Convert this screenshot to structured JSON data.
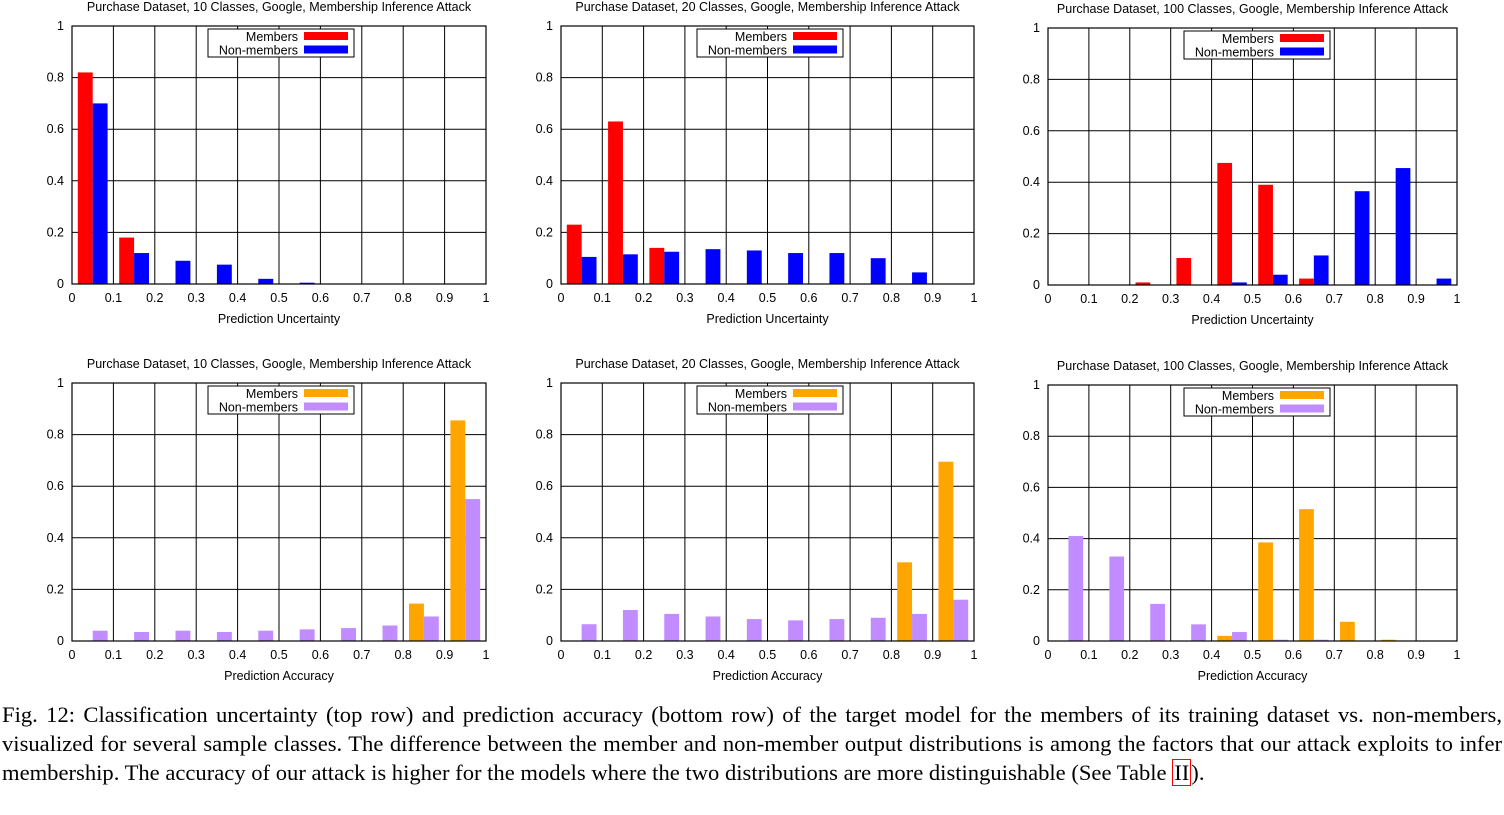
{
  "chart_data": [
    {
      "type": "bar",
      "title": "Purchase Dataset, 10 Classes, Google, Membership Inference Attack",
      "xlabel": "Prediction Uncertainty",
      "ylabel": "",
      "xlim": [
        0,
        1
      ],
      "ylim": [
        0,
        1
      ],
      "xticks": [
        "0",
        "0.1",
        "0.2",
        "0.3",
        "0.4",
        "0.5",
        "0.6",
        "0.7",
        "0.8",
        "0.9",
        "1"
      ],
      "yticks": [
        "0",
        "0.2",
        "0.4",
        "0.6",
        "0.8",
        "1"
      ],
      "grid": true,
      "legend_position": "top-center",
      "bin_starts": [
        0,
        0.1,
        0.2,
        0.3,
        0.4,
        0.5,
        0.6,
        0.7,
        0.8,
        0.9
      ],
      "series": [
        {
          "name": "Members",
          "color": "#ff0000",
          "values": [
            0.82,
            0.18,
            0,
            0,
            0,
            0,
            0,
            0,
            0,
            0
          ]
        },
        {
          "name": "Non-members",
          "color": "#0000ff",
          "values": [
            0.7,
            0.12,
            0.09,
            0.075,
            0.02,
            0.005,
            0,
            0,
            0,
            0
          ]
        }
      ]
    },
    {
      "type": "bar",
      "title": "Purchase Dataset, 20 Classes, Google, Membership Inference Attack",
      "xlabel": "Prediction Uncertainty",
      "ylabel": "",
      "xlim": [
        0,
        1
      ],
      "ylim": [
        0,
        1
      ],
      "xticks": [
        "0",
        "0.1",
        "0.2",
        "0.3",
        "0.4",
        "0.5",
        "0.6",
        "0.7",
        "0.8",
        "0.9",
        "1"
      ],
      "yticks": [
        "0",
        "0.2",
        "0.4",
        "0.6",
        "0.8",
        "1"
      ],
      "grid": true,
      "legend_position": "top-center",
      "bin_starts": [
        0,
        0.1,
        0.2,
        0.3,
        0.4,
        0.5,
        0.6,
        0.7,
        0.8,
        0.9
      ],
      "series": [
        {
          "name": "Members",
          "color": "#ff0000",
          "values": [
            0.23,
            0.63,
            0.14,
            0,
            0,
            0,
            0,
            0,
            0,
            0
          ]
        },
        {
          "name": "Non-members",
          "color": "#0000ff",
          "values": [
            0.105,
            0.115,
            0.125,
            0.135,
            0.13,
            0.12,
            0.12,
            0.1,
            0.045,
            0
          ]
        }
      ]
    },
    {
      "type": "bar",
      "title": "Purchase Dataset, 100 Classes, Google, Membership Inference Attack",
      "xlabel": "Prediction Uncertainty",
      "ylabel": "",
      "xlim": [
        0,
        1
      ],
      "ylim": [
        0,
        1
      ],
      "xticks": [
        "0",
        "0.1",
        "0.2",
        "0.3",
        "0.4",
        "0.5",
        "0.6",
        "0.7",
        "0.8",
        "0.9",
        "1"
      ],
      "yticks": [
        "0",
        "0.2",
        "0.4",
        "0.6",
        "0.8",
        "1"
      ],
      "grid": true,
      "legend_position": "top-center",
      "bin_starts": [
        0,
        0.1,
        0.2,
        0.3,
        0.4,
        0.5,
        0.6,
        0.7,
        0.8,
        0.9
      ],
      "series": [
        {
          "name": "Members",
          "color": "#ff0000",
          "values": [
            0,
            0,
            0.01,
            0.105,
            0.475,
            0.39,
            0.025,
            0,
            0,
            0
          ]
        },
        {
          "name": "Non-members",
          "color": "#0000ff",
          "values": [
            0,
            0,
            0,
            0,
            0.01,
            0.04,
            0.115,
            0.365,
            0.455,
            0.025
          ]
        }
      ]
    },
    {
      "type": "bar",
      "title": "Purchase Dataset, 10 Classes, Google, Membership Inference Attack",
      "xlabel": "Prediction Accuracy",
      "ylabel": "",
      "xlim": [
        0,
        1
      ],
      "ylim": [
        0,
        1
      ],
      "xticks": [
        "0",
        "0.1",
        "0.2",
        "0.3",
        "0.4",
        "0.5",
        "0.6",
        "0.7",
        "0.8",
        "0.9",
        "1"
      ],
      "yticks": [
        "0",
        "0.2",
        "0.4",
        "0.6",
        "0.8",
        "1"
      ],
      "grid": true,
      "legend_position": "top-center",
      "bin_starts": [
        0,
        0.1,
        0.2,
        0.3,
        0.4,
        0.5,
        0.6,
        0.7,
        0.8,
        0.9
      ],
      "series": [
        {
          "name": "Members",
          "color": "#ffa500",
          "values": [
            0,
            0,
            0,
            0,
            0,
            0,
            0,
            0,
            0.145,
            0.855
          ]
        },
        {
          "name": "Non-members",
          "color": "#c08cff",
          "values": [
            0.04,
            0.035,
            0.04,
            0.035,
            0.04,
            0.045,
            0.05,
            0.06,
            0.095,
            0.55
          ]
        }
      ]
    },
    {
      "type": "bar",
      "title": "Purchase Dataset, 20 Classes, Google, Membership Inference Attack",
      "xlabel": "Prediction Accuracy",
      "ylabel": "",
      "xlim": [
        0,
        1
      ],
      "ylim": [
        0,
        1
      ],
      "xticks": [
        "0",
        "0.1",
        "0.2",
        "0.3",
        "0.4",
        "0.5",
        "0.6",
        "0.7",
        "0.8",
        "0.9",
        "1"
      ],
      "yticks": [
        "0",
        "0.2",
        "0.4",
        "0.6",
        "0.8",
        "1"
      ],
      "grid": true,
      "legend_position": "top-center",
      "bin_starts": [
        0,
        0.1,
        0.2,
        0.3,
        0.4,
        0.5,
        0.6,
        0.7,
        0.8,
        0.9
      ],
      "series": [
        {
          "name": "Members",
          "color": "#ffa500",
          "values": [
            0,
            0,
            0,
            0,
            0,
            0,
            0,
            0,
            0.305,
            0.695
          ]
        },
        {
          "name": "Non-members",
          "color": "#c08cff",
          "values": [
            0.065,
            0.12,
            0.105,
            0.095,
            0.085,
            0.08,
            0.085,
            0.09,
            0.105,
            0.16
          ]
        }
      ]
    },
    {
      "type": "bar",
      "title": "Purchase Dataset, 100 Classes, Google, Membership Inference Attack",
      "xlabel": "Prediction Accuracy",
      "ylabel": "",
      "xlim": [
        0,
        1
      ],
      "ylim": [
        0,
        1
      ],
      "xticks": [
        "0",
        "0.1",
        "0.2",
        "0.3",
        "0.4",
        "0.5",
        "0.6",
        "0.7",
        "0.8",
        "0.9",
        "1"
      ],
      "yticks": [
        "0",
        "0.2",
        "0.4",
        "0.6",
        "0.8",
        "1"
      ],
      "grid": true,
      "legend_position": "top-center",
      "bin_starts": [
        0,
        0.1,
        0.2,
        0.3,
        0.4,
        0.5,
        0.6,
        0.7,
        0.8,
        0.9
      ],
      "series": [
        {
          "name": "Members",
          "color": "#ffa500",
          "values": [
            0,
            0,
            0,
            0,
            0.02,
            0.385,
            0.515,
            0.075,
            0.005,
            0
          ]
        },
        {
          "name": "Non-members",
          "color": "#c08cff",
          "values": [
            0.41,
            0.33,
            0.145,
            0.065,
            0.035,
            0.005,
            0.005,
            0,
            0,
            0
          ]
        }
      ]
    }
  ],
  "caption": {
    "label": "Fig. 12:",
    "text": "Classification uncertainty (top row) and prediction accuracy (bottom row) of the target model for the members of its training dataset vs. non-members, visualized for several sample classes. The difference between the member and non-member output distributions is among the factors that our attack exploits to infer membership. The accuracy of our attack is higher for the models where the two distributions are more distinguishable (See Table ",
    "ref": "II",
    "tail": ")."
  }
}
